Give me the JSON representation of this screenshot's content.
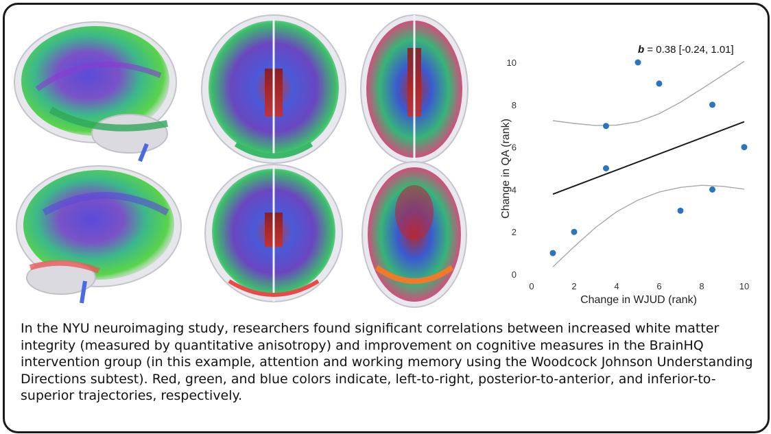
{
  "chart_data": {
    "type": "scatter",
    "annotation_b": "b",
    "annotation_rest": " = 0.38 [-0.24, 1.01]",
    "xlabel": "Change in WJUD (rank)",
    "ylabel": "Change in QA (rank)",
    "xlim": [
      0,
      10
    ],
    "ylim": [
      0,
      10
    ],
    "xticks": [
      "0",
      "2",
      "4",
      "6",
      "8",
      "10"
    ],
    "yticks": [
      "0",
      "2",
      "4",
      "6",
      "8",
      "10"
    ],
    "points": [
      {
        "x": 1,
        "y": 1
      },
      {
        "x": 2,
        "y": 2
      },
      {
        "x": 3.5,
        "y": 5
      },
      {
        "x": 3.5,
        "y": 7
      },
      {
        "x": 5,
        "y": 10
      },
      {
        "x": 6,
        "y": 9
      },
      {
        "x": 7,
        "y": 3
      },
      {
        "x": 8.5,
        "y": 8
      },
      {
        "x": 8.5,
        "y": 4
      },
      {
        "x": 10,
        "y": 6
      }
    ],
    "fit_line": {
      "x": [
        1,
        10
      ],
      "y": [
        3.78,
        7.2
      ]
    },
    "ci_upper": {
      "x": [
        1,
        2,
        3,
        4,
        5,
        6,
        7,
        8,
        9,
        10
      ],
      "y": [
        7.25,
        7.12,
        7.02,
        7.04,
        7.2,
        7.58,
        8.12,
        8.75,
        9.4,
        10.05
      ]
    },
    "ci_lower": {
      "x": [
        1,
        2,
        3,
        4,
        5,
        6,
        7,
        8,
        9,
        10
      ],
      "y": [
        0.35,
        1.3,
        2.2,
        2.95,
        3.5,
        3.88,
        4.1,
        4.2,
        4.15,
        4.02
      ]
    },
    "grid": false,
    "colors": {
      "points": "#2a75bb",
      "fit": "#1a1a1a",
      "ci": "#a8a8a8"
    }
  },
  "caption": "In the NYU neuroimaging study, researchers found significant correlations between increased white matter integrity (measured by quantitative anisotropy) and improvement on cognitive measures in the BrainHQ intervention group (in this example, attention and working memory using the Woodcock Johnson Understanding Directions subtest). Red, green, and blue colors indicate, left-to-right, posterior-to-anterior, and inferior-to-superior trajectories, respectively."
}
